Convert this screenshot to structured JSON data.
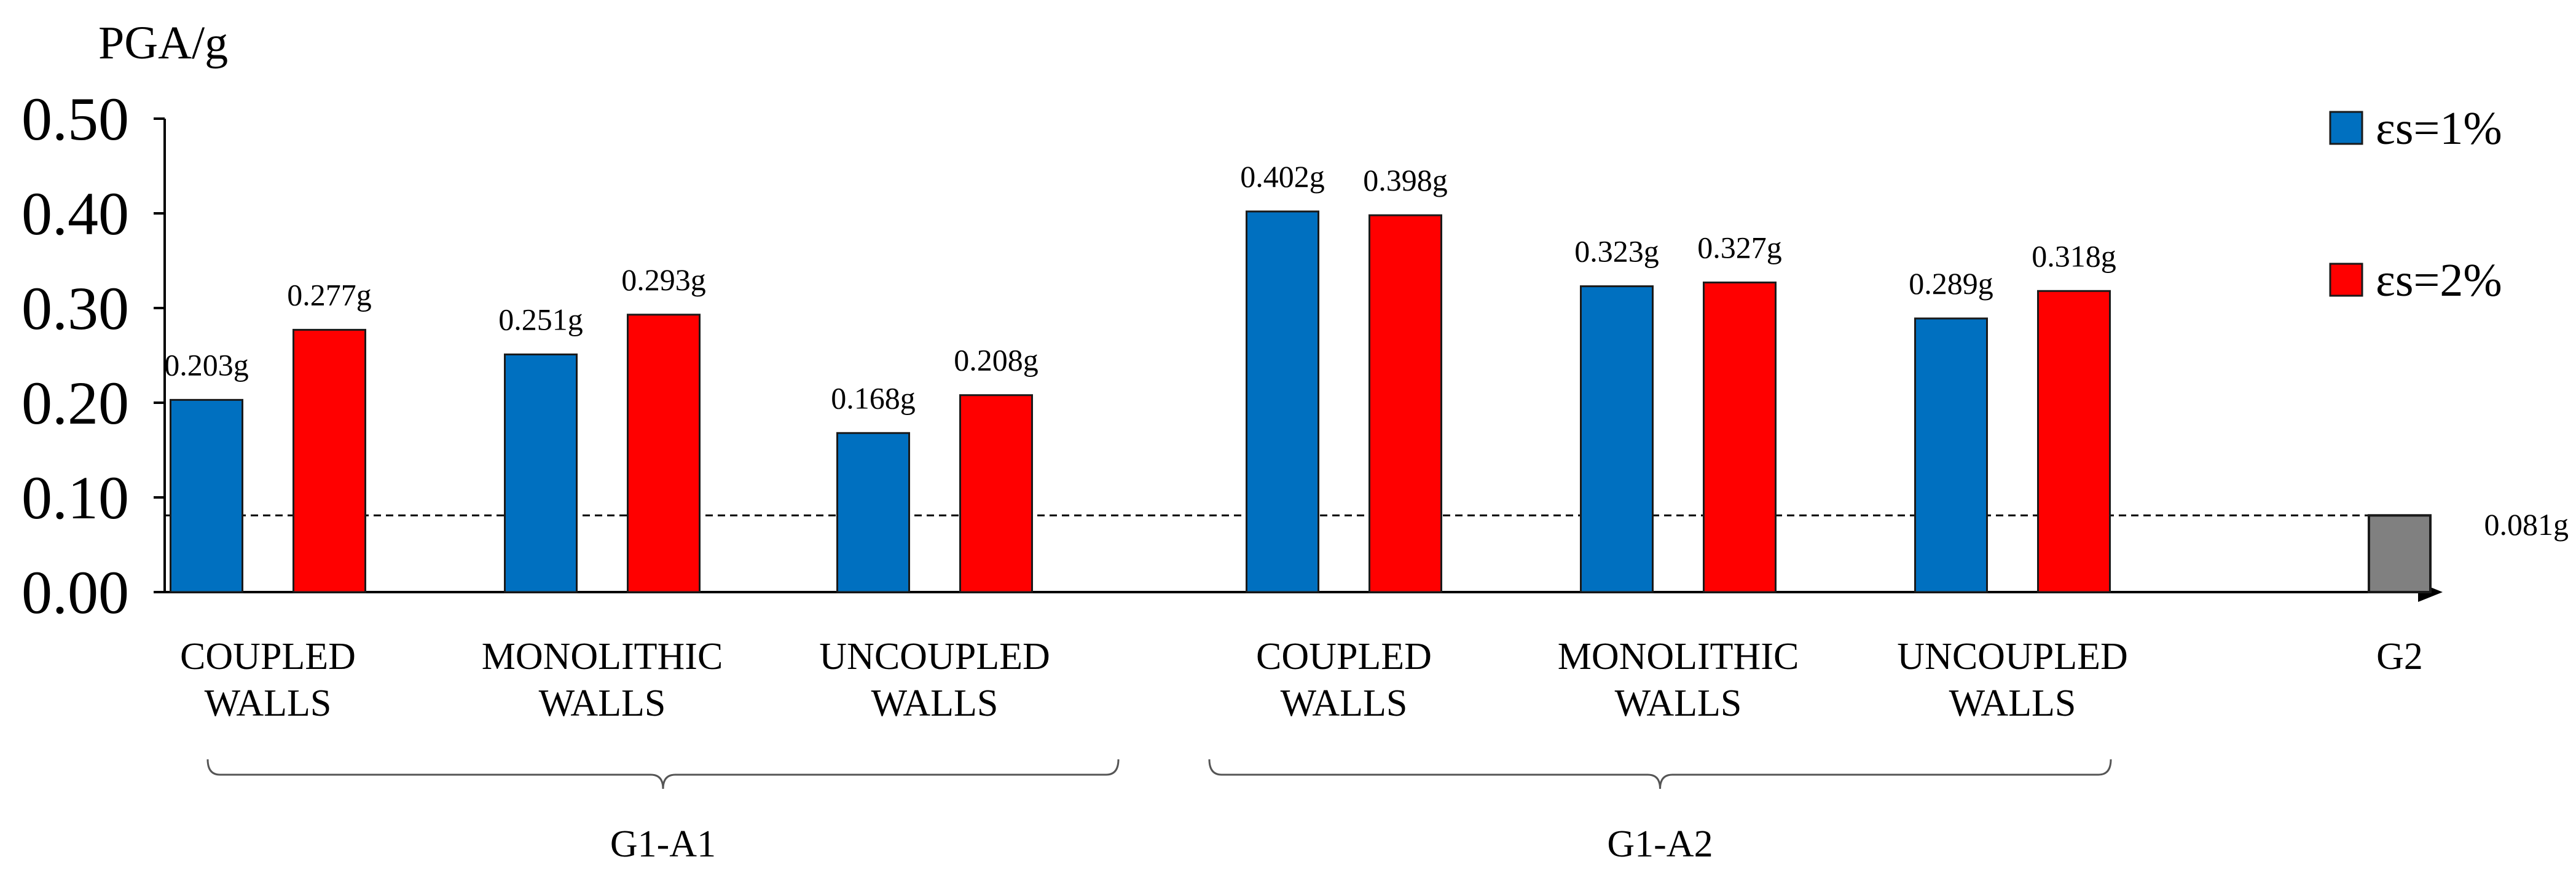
{
  "chart_data": {
    "type": "bar",
    "ylabel": "PGA/g",
    "ylim": [
      0,
      0.5
    ],
    "yticks": [
      0.0,
      0.1,
      0.2,
      0.3,
      0.4,
      0.5
    ],
    "ytick_labels": [
      "0.00",
      "0.10",
      "0.20",
      "0.30",
      "0.40",
      "0.50"
    ],
    "grid": false,
    "legend_position": "top-right",
    "categories": [
      {
        "lines": [
          "COUPLED",
          "WALLS"
        ]
      },
      {
        "lines": [
          "MONOLITHIC",
          "WALLS"
        ]
      },
      {
        "lines": [
          "UNCOUPLED",
          "WALLS"
        ]
      },
      {
        "lines": [
          "COUPLED",
          "WALLS"
        ]
      },
      {
        "lines": [
          "MONOLITHIC",
          "WALLS"
        ]
      },
      {
        "lines": [
          "UNCOUPLED",
          "WALLS"
        ]
      },
      {
        "lines": [
          "G2"
        ]
      }
    ],
    "groups": [
      {
        "label": "G1-A1",
        "from": 0,
        "to": 2
      },
      {
        "label": "G1-A2",
        "from": 3,
        "to": 5
      }
    ],
    "series": [
      {
        "name": "εs=1%",
        "color": "#0070C0",
        "values": [
          0.203,
          0.251,
          0.168,
          0.402,
          0.323,
          0.289,
          null
        ],
        "labels": [
          "0.203g",
          "0.251g",
          "0.168g",
          "0.402g",
          "0.323g",
          "0.289g",
          ""
        ]
      },
      {
        "name": "εs=2%",
        "color": "#FF0000",
        "values": [
          0.277,
          0.293,
          0.208,
          0.398,
          0.327,
          0.318,
          null
        ],
        "labels": [
          "0.277g",
          "0.293g",
          "0.208g",
          "0.398g",
          "0.327g",
          "0.318g",
          ""
        ]
      }
    ],
    "reference_bar": {
      "category_index": 6,
      "value": 0.081,
      "color": "#808080"
    },
    "reference_line": {
      "value": 0.081,
      "label": "0.081g",
      "style": "dashed"
    }
  }
}
